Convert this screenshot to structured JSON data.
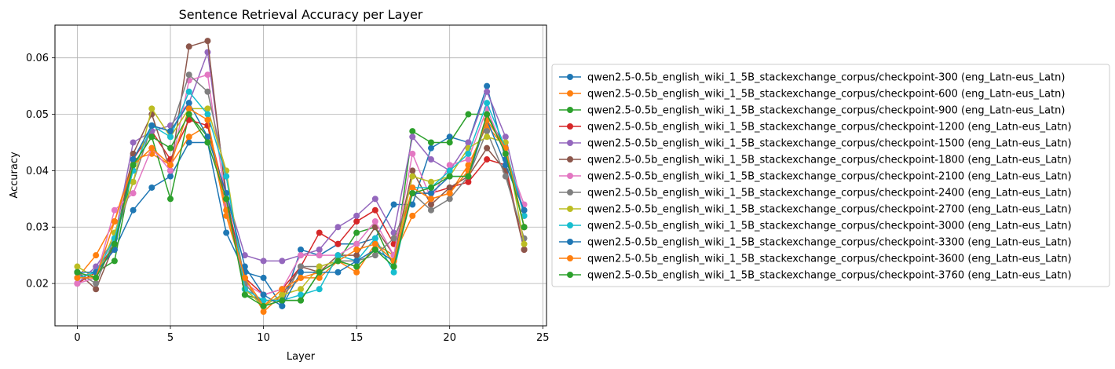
{
  "chart_data": {
    "type": "line",
    "title": "Sentence Retrieval Accuracy per Layer",
    "xlabel": "Layer",
    "ylabel": "Accuracy",
    "xlim": [
      -1.2,
      25.2
    ],
    "ylim": [
      0.0125,
      0.0658
    ],
    "xticks": [
      0,
      5,
      10,
      15,
      20,
      25
    ],
    "yticks": [
      0.02,
      0.03,
      0.04,
      0.05,
      0.06
    ],
    "ytick_labels": [
      "0.02",
      "0.03",
      "0.04",
      "0.05",
      "0.06"
    ],
    "grid": true,
    "legend_position": "outside-right",
    "x": [
      0,
      1,
      2,
      3,
      4,
      5,
      6,
      7,
      8,
      9,
      10,
      11,
      12,
      13,
      14,
      15,
      16,
      17,
      18,
      19,
      20,
      21,
      22,
      23,
      24
    ],
    "series": [
      {
        "name": "qwen2.5-0.5b_english_wiki_1_5B_stackexchange_corpus/checkpoint-300 (eng_Latn-eus_Latn)",
        "color": "#1f77b4",
        "values": [
          0.022,
          0.022,
          0.026,
          0.033,
          0.037,
          0.039,
          0.045,
          0.045,
          0.029,
          0.022,
          0.021,
          0.016,
          0.026,
          0.025,
          0.027,
          0.027,
          0.028,
          0.034,
          0.034,
          0.044,
          0.046,
          0.045,
          0.055,
          0.042,
          0.033
        ]
      },
      {
        "name": "qwen2.5-0.5b_english_wiki_1_5B_stackexchange_corpus/checkpoint-600 (eng_Latn-eus_Latn)",
        "color": "#ff7f0e",
        "values": [
          0.021,
          0.025,
          0.031,
          0.042,
          0.043,
          0.041,
          0.046,
          0.048,
          0.032,
          0.021,
          0.015,
          0.018,
          0.021,
          0.021,
          0.024,
          0.022,
          0.027,
          0.025,
          0.032,
          0.035,
          0.036,
          0.041,
          0.048,
          0.044,
          0.03
        ]
      },
      {
        "name": "qwen2.5-0.5b_english_wiki_1_5B_stackexchange_corpus/checkpoint-900 (eng_Latn-eus_Latn)",
        "color": "#2ca02c",
        "values": [
          0.022,
          0.022,
          0.024,
          0.041,
          0.046,
          0.035,
          0.05,
          0.046,
          0.036,
          0.018,
          0.017,
          0.017,
          0.017,
          0.022,
          0.024,
          0.029,
          0.03,
          0.023,
          0.047,
          0.045,
          0.045,
          0.05,
          0.05,
          0.044,
          0.03
        ]
      },
      {
        "name": "qwen2.5-0.5b_english_wiki_1_5B_stackexchange_corpus/checkpoint-1200 (eng_Latn-eus_Latn)",
        "color": "#d62728",
        "values": [
          0.02,
          0.022,
          0.027,
          0.042,
          0.047,
          0.042,
          0.049,
          0.048,
          0.035,
          0.021,
          0.018,
          0.019,
          0.023,
          0.029,
          0.027,
          0.031,
          0.033,
          0.027,
          0.036,
          0.036,
          0.037,
          0.038,
          0.042,
          0.041,
          0.026
        ]
      },
      {
        "name": "qwen2.5-0.5b_english_wiki_1_5B_stackexchange_corpus/checkpoint-1500 (eng_Latn-eus_Latn)",
        "color": "#9467bd",
        "values": [
          0.02,
          0.023,
          0.028,
          0.045,
          0.047,
          0.048,
          0.052,
          0.061,
          0.036,
          0.025,
          0.024,
          0.024,
          0.025,
          0.026,
          0.03,
          0.032,
          0.035,
          0.029,
          0.046,
          0.042,
          0.04,
          0.045,
          0.054,
          0.046,
          0.032
        ]
      },
      {
        "name": "qwen2.5-0.5b_english_wiki_1_5B_stackexchange_corpus/checkpoint-1800 (eng_Latn-eus_Latn)",
        "color": "#8c564b",
        "values": [
          0.022,
          0.019,
          0.027,
          0.043,
          0.05,
          0.04,
          0.062,
          0.063,
          0.035,
          0.019,
          0.016,
          0.018,
          0.023,
          0.022,
          0.025,
          0.025,
          0.03,
          0.025,
          0.04,
          0.034,
          0.037,
          0.039,
          0.044,
          0.04,
          0.026
        ]
      },
      {
        "name": "qwen2.5-0.5b_english_wiki_1_5B_stackexchange_corpus/checkpoint-2100 (eng_Latn-eus_Latn)",
        "color": "#e377c2",
        "values": [
          0.02,
          0.021,
          0.033,
          0.036,
          0.044,
          0.04,
          0.056,
          0.057,
          0.034,
          0.02,
          0.018,
          0.019,
          0.025,
          0.025,
          0.025,
          0.027,
          0.031,
          0.025,
          0.043,
          0.035,
          0.041,
          0.042,
          0.051,
          0.043,
          0.034
        ]
      },
      {
        "name": "qwen2.5-0.5b_english_wiki_1_5B_stackexchange_corpus/checkpoint-2400 (eng_Latn-eus_Latn)",
        "color": "#7f7f7f",
        "values": [
          0.022,
          0.02,
          0.028,
          0.038,
          0.048,
          0.047,
          0.057,
          0.054,
          0.039,
          0.02,
          0.016,
          0.017,
          0.023,
          0.023,
          0.024,
          0.024,
          0.025,
          0.028,
          0.036,
          0.033,
          0.035,
          0.039,
          0.047,
          0.039,
          0.028
        ]
      },
      {
        "name": "qwen2.5-0.5b_english_wiki_1_5B_stackexchange_corpus/checkpoint-2700 (eng_Latn-eus_Latn)",
        "color": "#bcbd22",
        "values": [
          0.023,
          0.021,
          0.029,
          0.038,
          0.051,
          0.046,
          0.051,
          0.051,
          0.04,
          0.019,
          0.016,
          0.018,
          0.019,
          0.023,
          0.024,
          0.023,
          0.026,
          0.024,
          0.039,
          0.038,
          0.039,
          0.044,
          0.046,
          0.045,
          0.027
        ]
      },
      {
        "name": "qwen2.5-0.5b_english_wiki_1_5B_stackexchange_corpus/checkpoint-3000 (eng_Latn-eus_Latn)",
        "color": "#17becf",
        "values": [
          0.021,
          0.022,
          0.028,
          0.04,
          0.048,
          0.046,
          0.054,
          0.05,
          0.039,
          0.019,
          0.017,
          0.017,
          0.018,
          0.019,
          0.025,
          0.024,
          0.028,
          0.022,
          0.037,
          0.037,
          0.04,
          0.043,
          0.052,
          0.044,
          0.032
        ]
      },
      {
        "name": "qwen2.5-0.5b_english_wiki_1_5B_stackexchange_corpus/checkpoint-3300 (eng_Latn-eus_Latn)",
        "color": "#1f77b4",
        "values": [
          0.022,
          0.022,
          0.026,
          0.042,
          0.048,
          0.047,
          0.052,
          0.046,
          0.036,
          0.023,
          0.018,
          0.016,
          0.022,
          0.022,
          0.022,
          0.024,
          0.026,
          0.024,
          0.036,
          0.036,
          0.039,
          0.039,
          0.049,
          0.041,
          0.033
        ]
      },
      {
        "name": "qwen2.5-0.5b_english_wiki_1_5B_stackexchange_corpus/checkpoint-3600 (eng_Latn-eus_Latn)",
        "color": "#ff7f0e",
        "values": [
          0.021,
          0.021,
          0.031,
          0.041,
          0.044,
          0.041,
          0.051,
          0.049,
          0.033,
          0.021,
          0.016,
          0.019,
          0.021,
          0.022,
          0.024,
          0.026,
          0.027,
          0.024,
          0.037,
          0.035,
          0.036,
          0.04,
          0.049,
          0.044,
          0.03
        ]
      },
      {
        "name": "qwen2.5-0.5b_english_wiki_1_5B_stackexchange_corpus/checkpoint-3760 (eng_Latn-eus_Latn)",
        "color": "#2ca02c",
        "values": [
          0.022,
          0.021,
          0.027,
          0.041,
          0.046,
          0.044,
          0.05,
          0.045,
          0.035,
          0.018,
          0.016,
          0.017,
          0.017,
          0.022,
          0.024,
          0.023,
          0.026,
          0.023,
          0.036,
          0.037,
          0.039,
          0.039,
          0.05,
          0.043,
          0.03
        ]
      }
    ]
  }
}
